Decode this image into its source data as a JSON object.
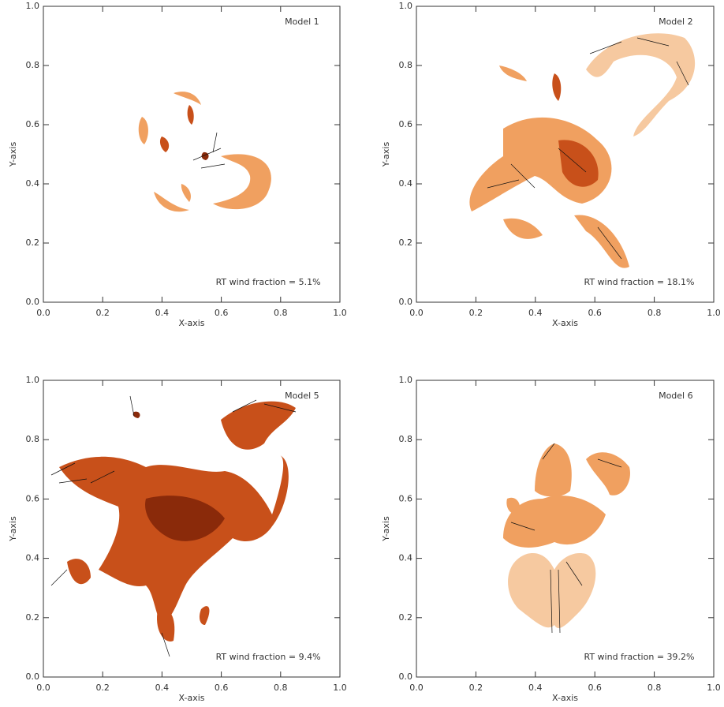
{
  "chart_data": [
    {
      "type": "image",
      "annotations": [
        "Model 1",
        "RT wind fraction = 5.1%"
      ],
      "xlabel": "X-axis",
      "ylabel": "Y-axis",
      "xlim": [
        0,
        1
      ],
      "ylim": [
        0,
        1
      ],
      "xticks": [
        {
          "value": 0,
          "label": "0.0"
        },
        {
          "value": 0.2,
          "label": "0.2"
        },
        {
          "value": 0.4,
          "label": "0.4"
        },
        {
          "value": 0.6,
          "label": "0.6"
        },
        {
          "value": 0.8,
          "label": "0.8"
        },
        {
          "value": 1,
          "label": "1.0"
        }
      ],
      "yticks": [
        {
          "value": 0,
          "label": "0.0"
        },
        {
          "value": 0.2,
          "label": "0.2"
        },
        {
          "value": 0.4,
          "label": "0.4"
        },
        {
          "value": 0.6,
          "label": "0.6"
        },
        {
          "value": 0.8,
          "label": "0.8"
        },
        {
          "value": 1,
          "label": "1.0"
        }
      ]
    },
    {
      "type": "image",
      "annotations": [
        "Model 2",
        "RT wind fraction = 18.1%"
      ],
      "xlabel": "X-axis",
      "ylabel": "Y-axis",
      "xlim": [
        0,
        1
      ],
      "ylim": [
        0,
        1
      ],
      "xticks": [
        {
          "value": 0,
          "label": "0.0"
        },
        {
          "value": 0.2,
          "label": "0.2"
        },
        {
          "value": 0.4,
          "label": "0.4"
        },
        {
          "value": 0.6,
          "label": "0.6"
        },
        {
          "value": 0.8,
          "label": "0.8"
        },
        {
          "value": 1,
          "label": "1.0"
        }
      ],
      "yticks": [
        {
          "value": 0,
          "label": "0.0"
        },
        {
          "value": 0.2,
          "label": "0.2"
        },
        {
          "value": 0.4,
          "label": "0.4"
        },
        {
          "value": 0.6,
          "label": "0.6"
        },
        {
          "value": 0.8,
          "label": "0.8"
        },
        {
          "value": 1,
          "label": "1.0"
        }
      ]
    },
    {
      "type": "image",
      "annotations": [
        "Model 5",
        "RT wind fraction = 9.4%"
      ],
      "xlabel": "X-axis",
      "ylabel": "Y-axis",
      "xlim": [
        0,
        1
      ],
      "ylim": [
        0,
        1
      ],
      "xticks": [
        {
          "value": 0,
          "label": "0.0"
        },
        {
          "value": 0.2,
          "label": "0.2"
        },
        {
          "value": 0.4,
          "label": "0.4"
        },
        {
          "value": 0.6,
          "label": "0.6"
        },
        {
          "value": 0.8,
          "label": "0.8"
        },
        {
          "value": 1,
          "label": "1.0"
        }
      ],
      "yticks": [
        {
          "value": 0,
          "label": "0.0"
        },
        {
          "value": 0.2,
          "label": "0.2"
        },
        {
          "value": 0.4,
          "label": "0.4"
        },
        {
          "value": 0.6,
          "label": "0.6"
        },
        {
          "value": 0.8,
          "label": "0.8"
        },
        {
          "value": 1,
          "label": "1.0"
        }
      ]
    },
    {
      "type": "image",
      "annotations": [
        "Model 6",
        "RT wind fraction = 39.2%"
      ],
      "xlabel": "X-axis",
      "ylabel": "Y-axis",
      "xlim": [
        0,
        1
      ],
      "ylim": [
        0,
        1
      ],
      "xticks": [
        {
          "value": 0,
          "label": "0.0"
        },
        {
          "value": 0.2,
          "label": "0.2"
        },
        {
          "value": 0.4,
          "label": "0.4"
        },
        {
          "value": 0.6,
          "label": "0.6"
        },
        {
          "value": 0.8,
          "label": "0.8"
        },
        {
          "value": 1,
          "label": "1.0"
        }
      ],
      "yticks": [
        {
          "value": 0,
          "label": "0.0"
        },
        {
          "value": 0.2,
          "label": "0.2"
        },
        {
          "value": 0.4,
          "label": "0.4"
        },
        {
          "value": 0.6,
          "label": "0.6"
        },
        {
          "value": 0.8,
          "label": "0.8"
        },
        {
          "value": 1,
          "label": "1.0"
        }
      ]
    }
  ]
}
